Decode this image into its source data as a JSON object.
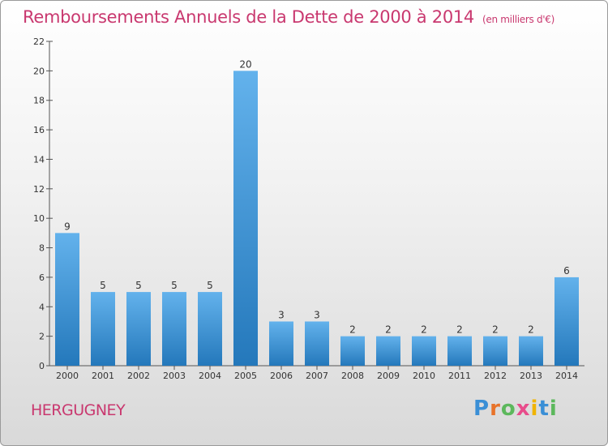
{
  "header": {
    "title": "Remboursements Annuels de la Dette de 2000 à 2014",
    "unit": "(en milliers d'€)"
  },
  "footer": {
    "place": "HERGUGNEY",
    "logo_text": "Proxiti"
  },
  "colors": {
    "title": "#c9386f",
    "bar_light": "#63b2ec",
    "bar_dark": "#2478bb",
    "logo": [
      "#3a8fd6",
      "#e8732a",
      "#5cb85c",
      "#e84c8b",
      "#f0b400",
      "#3a8fd6",
      "#5cb85c"
    ]
  },
  "chart_data": {
    "type": "bar",
    "categories": [
      "2000",
      "2001",
      "2002",
      "2003",
      "2004",
      "2005",
      "2006",
      "2007",
      "2008",
      "2009",
      "2010",
      "2011",
      "2012",
      "2013",
      "2014"
    ],
    "values": [
      9,
      5,
      5,
      5,
      5,
      20,
      3,
      3,
      2,
      2,
      2,
      2,
      2,
      2,
      6
    ],
    "ylim": [
      0,
      22
    ],
    "yticks": [
      0,
      2,
      4,
      6,
      8,
      10,
      12,
      14,
      16,
      18,
      20,
      22
    ],
    "title": "Remboursements Annuels de la Dette de 2000 à 2014",
    "xlabel": "",
    "ylabel": "",
    "grid": false,
    "data_labels": true
  }
}
